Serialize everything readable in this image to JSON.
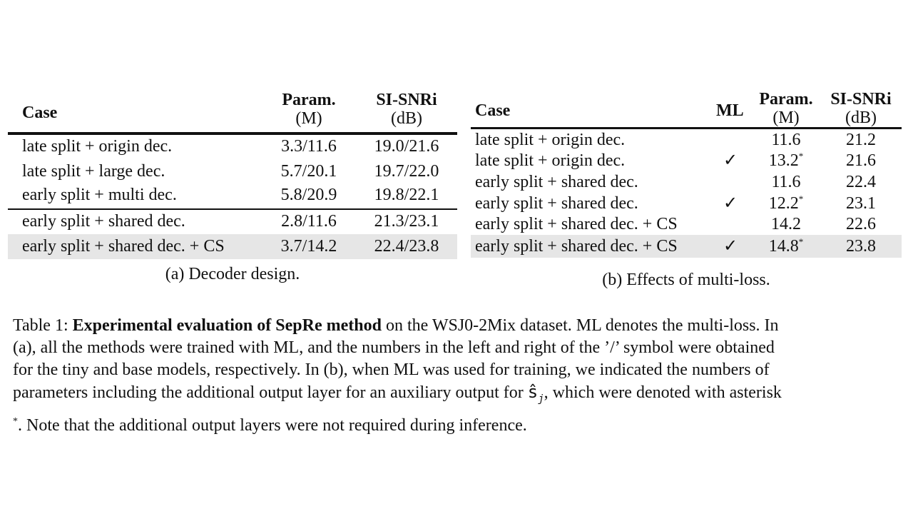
{
  "table_a": {
    "headers": {
      "case": "Case",
      "param_line1": "Param.",
      "param_line2": "(M)",
      "snr_line1": "SI-SNRi",
      "snr_line2": "(dB)"
    },
    "rows": [
      {
        "case": "late split + origin dec.",
        "param": "3.3/11.6",
        "snr": "19.0/21.6"
      },
      {
        "case": "late split + large dec.",
        "param": "5.7/20.1",
        "snr": "19.7/22.0"
      },
      {
        "case": "early split + multi dec.",
        "param": "5.8/20.9",
        "snr": "19.8/22.1"
      },
      {
        "case": "early split + shared dec.",
        "param": "2.8/11.6",
        "snr": "21.3/23.1"
      },
      {
        "case": "early split + shared dec. + CS",
        "param": "3.7/14.2",
        "snr": "22.4/23.8"
      }
    ],
    "caption": "(a) Decoder design."
  },
  "table_b": {
    "headers": {
      "case": "Case",
      "ml": "ML",
      "param_line1": "Param.",
      "param_line2": "(M)",
      "snr_line1": "SI-SNRi",
      "snr_line2": "(dB)"
    },
    "rows": [
      {
        "case": "late split + origin dec.",
        "ml": "",
        "param": "11.6",
        "ast": "",
        "snr": "21.2"
      },
      {
        "case": "late split + origin dec.",
        "ml": "✓",
        "param": "13.2",
        "ast": "*",
        "snr": "21.6"
      },
      {
        "case": "early split + shared dec.",
        "ml": "",
        "param": "11.6",
        "ast": "",
        "snr": "22.4"
      },
      {
        "case": "early split + shared dec.",
        "ml": "✓",
        "param": "12.2",
        "ast": "*",
        "snr": "23.1"
      },
      {
        "case": "early split + shared dec. + CS",
        "ml": "",
        "param": "14.2",
        "ast": "",
        "snr": "22.6"
      },
      {
        "case": "early split + shared dec. + CS",
        "ml": "✓",
        "param": "14.8",
        "ast": "*",
        "snr": "23.8"
      }
    ],
    "caption": "(b) Effects of multi-loss."
  },
  "table_caption": {
    "label": "Table 1:",
    "bold": "Experimental evaluation of SepRe method",
    "line1_rest": "on the WSJ0-2Mix dataset. ML denotes the multi-loss. In",
    "line2": "(a), all the methods were trained with ML, and the numbers in the left and right of the ’/’ symbol were obtained",
    "line3": "for the tiny and base models, respectively. In (b), when ML was used for training, we indicated the numbers of",
    "line4_pre": "parameters including the additional output layer for an auxiliary output for",
    "line4_sym": "ŝ",
    "line4_sub": "j",
    "line4_post": ", which were denoted with asterisk",
    "line5_ast": "*",
    "line5": ". Note that the additional output layers were not required during inference."
  }
}
